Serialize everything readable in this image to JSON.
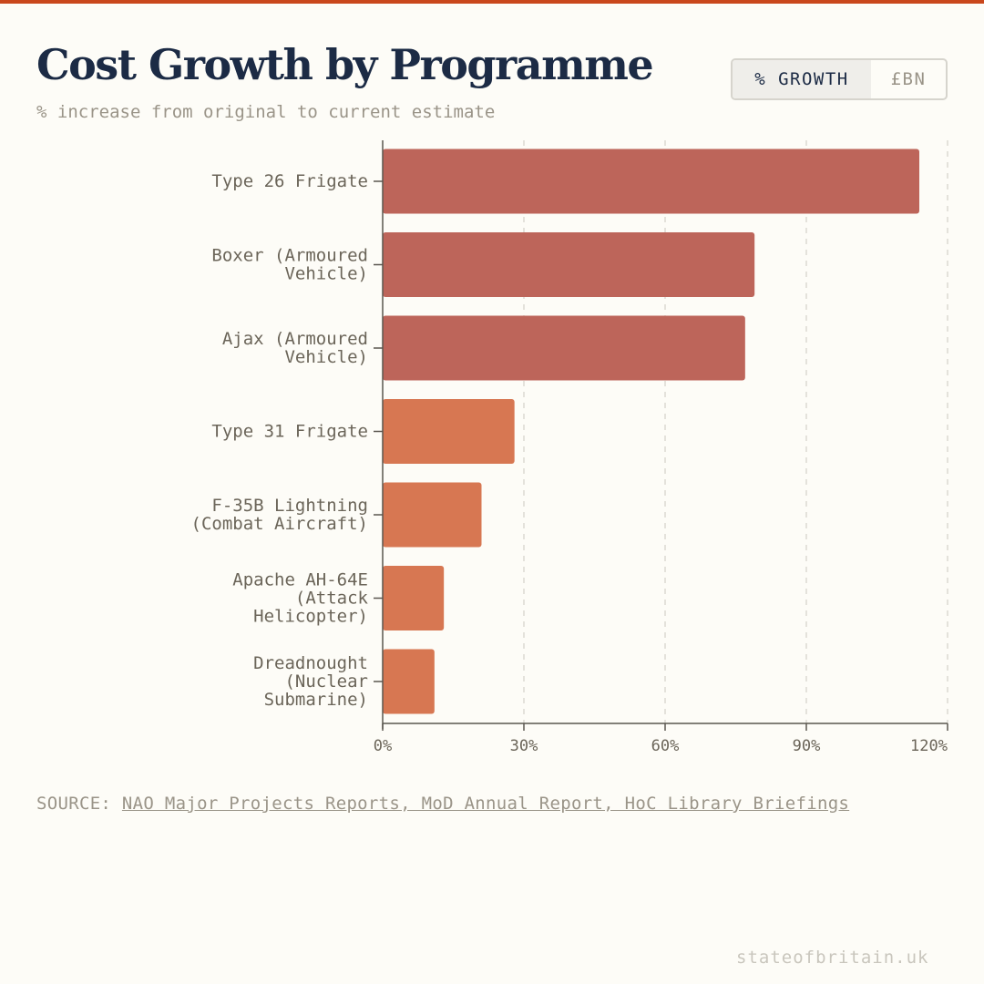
{
  "header": {
    "title": "Cost Growth by Programme",
    "subtitle": "% increase from original to current estimate"
  },
  "toggle": {
    "options": [
      "% GROWTH",
      "£BN"
    ],
    "selected": "% GROWTH"
  },
  "source": {
    "prefix": "SOURCE: ",
    "link_text": "NAO Major Projects Reports, MoD Annual Report, HoC Library Briefings"
  },
  "footer": {
    "site": "stateofbritain.uk"
  },
  "colors": {
    "high": "#bd655a",
    "low": "#d77752",
    "axis": "#5a564f",
    "grid": "#dcd9d2"
  },
  "chart_data": {
    "type": "bar",
    "orientation": "horizontal",
    "title": "Cost Growth by Programme",
    "xlabel": "",
    "ylabel": "",
    "xlim": [
      0,
      120
    ],
    "x_ticks": [
      0,
      30,
      60,
      90,
      120
    ],
    "x_tick_labels": [
      "0%",
      "30%",
      "60%",
      "90%",
      "120%"
    ],
    "grid": "vertical dashed",
    "categories": [
      [
        "Type 26 Frigate"
      ],
      [
        "Boxer (Armoured",
        "Vehicle)"
      ],
      [
        "Ajax (Armoured",
        "Vehicle)"
      ],
      [
        "Type 31 Frigate"
      ],
      [
        "F-35B Lightning",
        "(Combat Aircraft)"
      ],
      [
        "Apache AH-64E",
        "(Attack",
        "Helicopter)"
      ],
      [
        "Dreadnought",
        "(Nuclear",
        "Submarine)"
      ]
    ],
    "values": [
      114,
      79,
      77,
      28,
      21,
      13,
      11
    ],
    "color_groups": [
      "high",
      "high",
      "high",
      "low",
      "low",
      "low",
      "low"
    ]
  }
}
